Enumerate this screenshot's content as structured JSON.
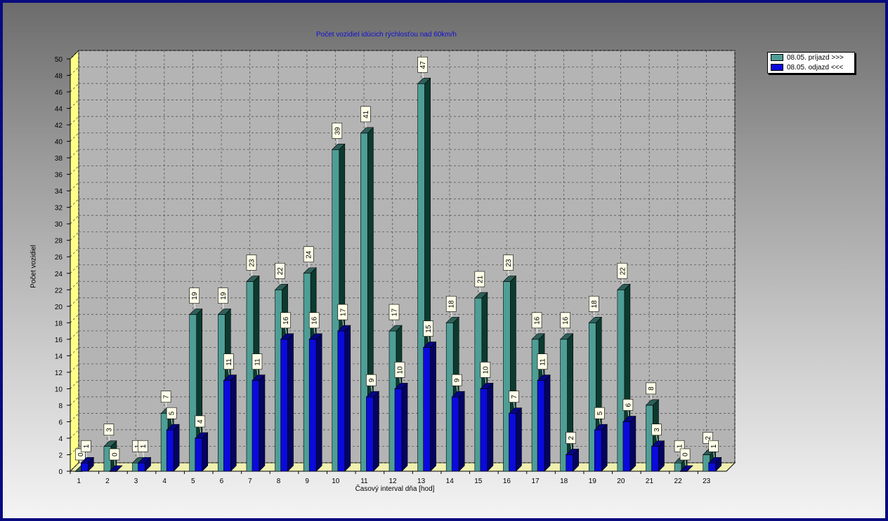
{
  "chart_data": {
    "type": "bar",
    "title": "Počet vozidiel idúcich rýchlosťou nad 60km/h",
    "xlabel": "Časový interval dňa [hod]",
    "ylabel": "Počet vozidiel",
    "ylim": [
      0,
      50
    ],
    "ytick_step": 2,
    "grid": true,
    "legend_position": "top-right",
    "categories": [
      "1",
      "2",
      "3",
      "4",
      "5",
      "6",
      "7",
      "8",
      "9",
      "10",
      "11",
      "12",
      "13",
      "14",
      "15",
      "16",
      "17",
      "18",
      "19",
      "20",
      "21",
      "22",
      "23"
    ],
    "series": [
      {
        "name": "08.05.  príjazd >>>",
        "color": "#4e9e96",
        "values": [
          0,
          3,
          1,
          7,
          19,
          19,
          23,
          22,
          24,
          39,
          41,
          17,
          47,
          18,
          21,
          23,
          16,
          16,
          18,
          22,
          8,
          1,
          2
        ]
      },
      {
        "name": "08.05.  odjazd <<<",
        "color": "#0a0adc",
        "values": [
          1,
          0,
          1,
          5,
          4,
          11,
          11,
          16,
          16,
          17,
          9,
          10,
          15,
          9,
          10,
          7,
          11,
          2,
          5,
          6,
          3,
          0,
          1
        ]
      }
    ]
  }
}
